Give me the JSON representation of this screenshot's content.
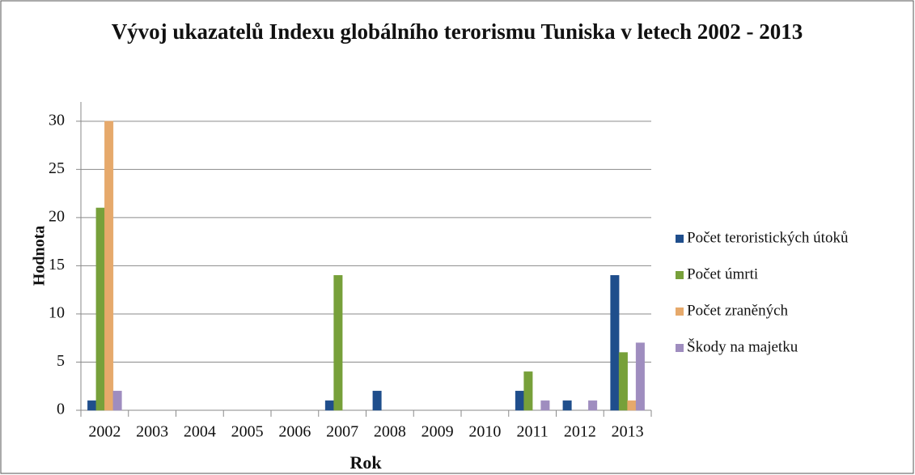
{
  "chart_data": {
    "type": "bar",
    "title": "Vývoj ukazatelů Indexu globálního terorismu Tuniska v letech 2002 - 2013",
    "x_label": "Rok",
    "y_label": "Hodnota",
    "categories": [
      "2002",
      "2003",
      "2004",
      "2005",
      "2006",
      "2007",
      "2008",
      "2009",
      "2010",
      "2011",
      "2012",
      "2013"
    ],
    "series": [
      {
        "name": "Počet teroristických útoků",
        "color": "#1f4e8c",
        "values": [
          1,
          0,
          0,
          0,
          0,
          1,
          2,
          0,
          0,
          2,
          1,
          14
        ]
      },
      {
        "name": "Počet úmrti",
        "color": "#77a03a",
        "values": [
          21,
          0,
          0,
          0,
          0,
          14,
          0,
          0,
          0,
          4,
          0,
          6
        ]
      },
      {
        "name": "Počet zraněných",
        "color": "#e6a96b",
        "values": [
          30,
          0,
          0,
          0,
          0,
          0,
          0,
          0,
          0,
          0,
          0,
          1
        ]
      },
      {
        "name": "Škody na majetku",
        "color": "#9f8dbf",
        "values": [
          2,
          0,
          0,
          0,
          0,
          0,
          0,
          0,
          0,
          1,
          1,
          7
        ]
      }
    ],
    "ylim": [
      0,
      32
    ],
    "yticks": [
      0,
      5,
      10,
      15,
      20,
      25,
      30
    ],
    "grid": true,
    "legend": "right"
  }
}
